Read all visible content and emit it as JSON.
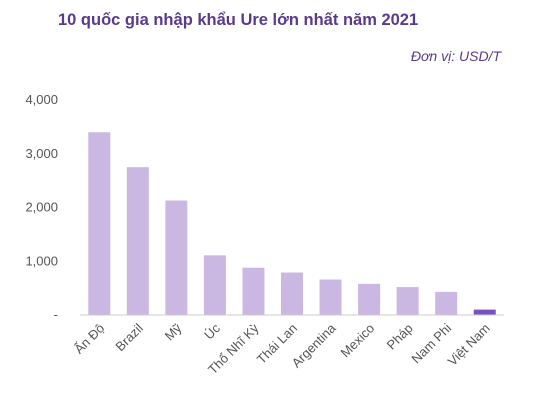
{
  "header": {
    "title": "10 quốc gia nhập khẩu Ure lớn nhất năm 2021",
    "unit": "Đơn vị: USD/T"
  },
  "colors": {
    "bar": "#cbb8e2",
    "highlight": "#7b4fbf",
    "title": "#5a3a8c",
    "axis": "#cccccc",
    "text": "#555555"
  },
  "chart_data": {
    "type": "bar",
    "title": "10 quốc gia nhập khẩu Ure lớn nhất năm 2021",
    "unit": "Đơn vị: USD/T",
    "xlabel": "",
    "ylabel": "",
    "categories": [
      "Ấn Độ",
      "Brazil",
      "Mỹ",
      "Úc",
      "Thổ Nhĩ Kỳ",
      "Thái Lan",
      "Argentina",
      "Mexico",
      "Pháp",
      "Nam Phi",
      "Việt Nam"
    ],
    "values": [
      3400,
      2750,
      2130,
      1110,
      880,
      790,
      660,
      580,
      520,
      430,
      100
    ],
    "highlight_index": 10,
    "ylim": [
      0,
      4000
    ],
    "yticks": [
      0,
      1000,
      2000,
      3000,
      4000
    ],
    "ytick_labels": [
      "-",
      "1,000",
      "2,000",
      "3,000",
      "4,000"
    ],
    "grid": false,
    "legend": "none"
  }
}
